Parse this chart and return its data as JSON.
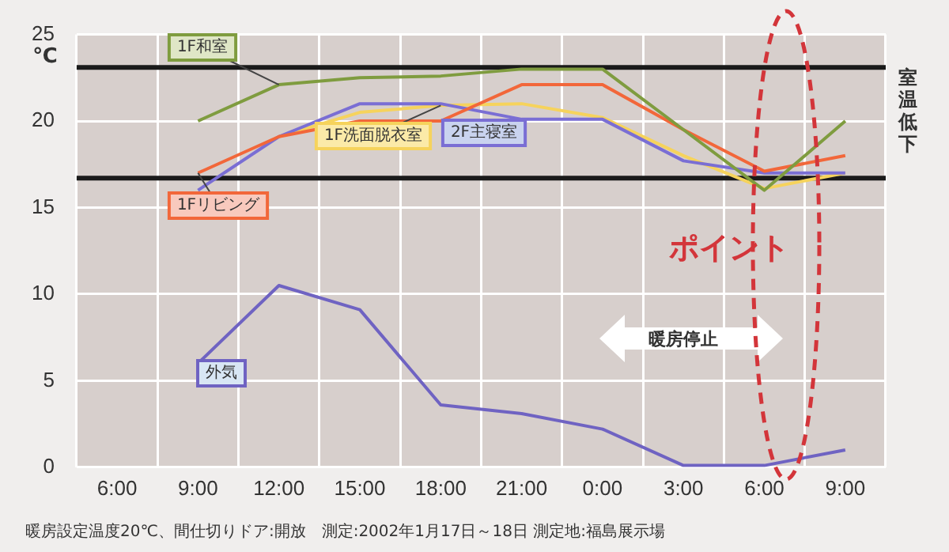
{
  "chart_data": {
    "type": "line",
    "categories": [
      "6:00",
      "9:00",
      "12:00",
      "15:00",
      "18:00",
      "21:00",
      "0:00",
      "3:00",
      "6:00",
      "9:00"
    ],
    "series": [
      {
        "name": "1F和室",
        "color": "#7f9c3f",
        "values": [
          null,
          20.0,
          22.1,
          22.5,
          22.6,
          23.0,
          23.0,
          19.5,
          16.0,
          20.0
        ]
      },
      {
        "name": "1Fリビング",
        "color": "#f2673a",
        "values": [
          null,
          17.0,
          19.1,
          20.0,
          20.0,
          22.1,
          22.1,
          19.5,
          17.1,
          18.0
        ]
      },
      {
        "name": "2F主寝室",
        "color": "#7a6ed4",
        "values": [
          null,
          16.0,
          19.1,
          21.0,
          21.0,
          20.1,
          20.1,
          17.7,
          17.0,
          17.0
        ]
      },
      {
        "name": "1F洗面脱衣室",
        "color": "#f6d35c",
        "values": [
          null,
          null,
          19.1,
          20.5,
          20.9,
          21.0,
          20.2,
          18.0,
          16.1,
          17.0
        ]
      },
      {
        "name": "外気",
        "color": "#6f63c2",
        "values": [
          null,
          6.0,
          10.5,
          9.1,
          3.6,
          3.1,
          2.2,
          0.1,
          0.1,
          1.0
        ]
      }
    ],
    "ylabel": "℃",
    "ylim": [
      0,
      25
    ],
    "yticks": [
      0,
      5,
      10,
      15,
      20,
      25
    ],
    "grid": true,
    "legend": false,
    "marker": "none",
    "line_style": "solid",
    "ref_lines": [
      {
        "axis": "y",
        "value": 23.1,
        "color": "#1a1a1a"
      },
      {
        "axis": "y",
        "value": 16.7,
        "color": "#1a1a1a"
      }
    ],
    "annotations": [
      "室温低下",
      "暖房停止",
      "ポイント",
      "暖房設定温度20℃、間仕切りドア:開放　測定:2002年1月17日～18日 測定地:福島展示場"
    ]
  }
}
